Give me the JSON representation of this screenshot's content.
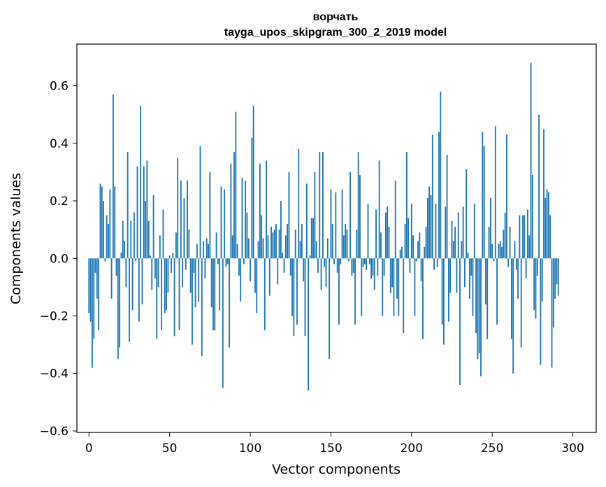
{
  "chart_data": {
    "type": "bar",
    "title": "ворчать",
    "subtitle": "tayga_upos_skipgram_300_2_2019 model",
    "xlabel": "Vector components",
    "ylabel": "Components values",
    "xlim": [
      -7.5,
      314.5
    ],
    "ylim": [
      -0.605,
      0.745
    ],
    "xticks": [
      0,
      50,
      100,
      150,
      200,
      250,
      300
    ],
    "xtick_labels": [
      "0",
      "50",
      "100",
      "150",
      "200",
      "250",
      "300"
    ],
    "yticks": [
      -0.6,
      -0.4,
      -0.2,
      0.0,
      0.2,
      0.4,
      0.6
    ],
    "ytick_labels": [
      "−0.6",
      "−0.4",
      "−0.2",
      "0.0",
      "0.2",
      "0.4",
      "0.6"
    ],
    "grid": false,
    "bar_color": "#1f77b4",
    "series": [
      {
        "values": [
          -0.19,
          -0.22,
          -0.38,
          -0.28,
          -0.05,
          -0.14,
          -0.25,
          0.26,
          0.25,
          0.2,
          -0.01,
          0.15,
          0.12,
          0.24,
          -0.14,
          0.57,
          0.25,
          -0.06,
          -0.35,
          -0.31,
          0.02,
          0.13,
          0.06,
          -0.1,
          0.37,
          -0.29,
          0.13,
          -0.18,
          0.16,
          -0.01,
          0.32,
          -0.22,
          0.53,
          -0.16,
          0.32,
          0.2,
          0.34,
          0.13,
          0.01,
          -0.11,
          0.22,
          -0.07,
          -0.28,
          -0.1,
          0.08,
          -0.25,
          0.17,
          -0.19,
          -0.18,
          -0.12,
          0.01,
          -0.05,
          0.02,
          -0.27,
          0.09,
          0.35,
          -0.25,
          0.27,
          -0.1,
          0.21,
          -0.04,
          0.27,
          0.1,
          -0.12,
          -0.3,
          -0.05,
          -0.17,
          0.05,
          -0.15,
          0.39,
          -0.34,
          0.06,
          -0.07,
          0.07,
          0.05,
          0.3,
          -0.17,
          -0.25,
          -0.25,
          0.09,
          -0.02,
          -0.18,
          0.25,
          -0.45,
          0.24,
          -0.03,
          -0.02,
          -0.31,
          0.33,
          0.08,
          0.37,
          0.51,
          0.05,
          -0.06,
          -0.15,
          0.28,
          -0.02,
          0.27,
          0.16,
          0.07,
          -0.08,
          0.42,
          0.53,
          -0.12,
          -0.19,
          0.06,
          0.33,
          0.15,
          0.07,
          -0.25,
          0.34,
          0.08,
          -0.13,
          0.11,
          0.09,
          0.1,
          0.12,
          -0.09,
          0.1,
          0.2,
          0.02,
          -0.05,
          0.08,
          0.12,
          0.3,
          -0.06,
          -0.2,
          -0.27,
          0.1,
          -0.23,
          0.38,
          0.06,
          0.12,
          -0.08,
          -0.27,
          0.26,
          -0.46,
          0.01,
          0.14,
          0.14,
          0.3,
          0.06,
          -0.05,
          0.37,
          -0.11,
          0.37,
          -0.03,
          -0.1,
          0.07,
          -0.35,
          0.24,
          0.12,
          -0.02,
          0.23,
          -0.05,
          -0.23,
          -0.02,
          0.24,
          0.08,
          0.12,
          0.1,
          -0.01,
          0.3,
          -0.06,
          -0.05,
          -0.23,
          0.1,
          0.37,
          0.29,
          -0.2,
          -0.03,
          -0.02,
          -0.04,
          0.19,
          -0.02,
          -0.07,
          -0.06,
          -0.11,
          0.17,
          -0.06,
          0.34,
          0.09,
          -0.2,
          -0.06,
          0.16,
          0.18,
          0.11,
          -0.12,
          -0.1,
          -0.2,
          0.27,
          -0.14,
          -0.2,
          0.03,
          0.04,
          -0.26,
          0.12,
          0.37,
          0.14,
          -0.05,
          0.19,
          0.08,
          -0.2,
          -0.01,
          0.06,
          0.09,
          -0.08,
          -0.28,
          0.04,
          0.11,
          0.21,
          0.25,
          0.22,
          0.43,
          -0.04,
          0.19,
          -0.03,
          0.44,
          0.58,
          -0.23,
          -0.3,
          0.18,
          0.36,
          -0.22,
          -0.12,
          0.13,
          0.06,
          0.11,
          -0.12,
          0.16,
          -0.44,
          0.06,
          0.18,
          -0.1,
          0.31,
          0.02,
          -0.14,
          -0.06,
          -0.2,
          0.19,
          -0.26,
          -0.35,
          -0.33,
          -0.41,
          0.44,
          0.39,
          -0.16,
          -0.28,
          0.11,
          0.21,
          0.05,
          -0.01,
          0.46,
          -0.23,
          0.05,
          0.06,
          0.04,
          0.1,
          0.16,
          0.43,
          -0.03,
          0.11,
          -0.28,
          -0.4,
          0.06,
          -0.04,
          -0.14,
          0.15,
          -0.31,
          0.15,
          0.15,
          -0.07,
          0.17,
          0.08,
          0.68,
          0.29,
          -0.18,
          -0.21,
          -0.06,
          0.5,
          -0.37,
          -0.15,
          0.45,
          0.21,
          0.24,
          0.23,
          0.15,
          -0.38,
          -0.24,
          -0.14,
          -0.09,
          -0.13
        ]
      }
    ]
  }
}
